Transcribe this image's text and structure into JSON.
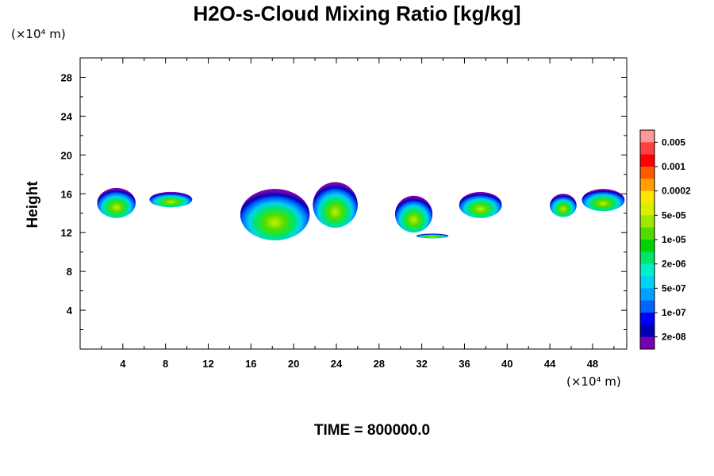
{
  "chart_data": {
    "type": "heatmap",
    "title": "H2O-s-Cloud Mixing Ratio [kg/kg]",
    "ylabel": "Height",
    "xlabel": "",
    "x_unit": "(×10⁴ m)",
    "y_unit": "(×10⁴ m)",
    "footer": "TIME = 800000.0",
    "xlim": [
      0,
      51.2
    ],
    "ylim": [
      0,
      30
    ],
    "x_ticks": [
      4,
      8,
      12,
      16,
      20,
      24,
      28,
      32,
      36,
      40,
      44,
      48
    ],
    "y_ticks": [
      4,
      8,
      12,
      16,
      20,
      24,
      28
    ],
    "colorbar": {
      "labels": [
        "0.005",
        "0.001",
        "0.0002",
        "5e-05",
        "1e-05",
        "2e-06",
        "5e-07",
        "1e-07",
        "2e-08"
      ],
      "colors_top_to_bottom": [
        "#ff9999",
        "#ff4040",
        "#ff0000",
        "#ff5a00",
        "#ffa000",
        "#ffe600",
        "#d7f000",
        "#a0e600",
        "#50dc00",
        "#00d200",
        "#00e664",
        "#00f0c8",
        "#00d2f0",
        "#00a0ff",
        "#0064ff",
        "#0000ff",
        "#0000b4",
        "#7800b4"
      ]
    },
    "cloud_clusters": [
      {
        "x": [
          1.6,
          5.2
        ],
        "y": [
          13.5,
          16.6
        ]
      },
      {
        "x": [
          6.5,
          10.5
        ],
        "y": [
          14.6,
          16.2
        ]
      },
      {
        "x": [
          15.0,
          21.5
        ],
        "y": [
          11.2,
          16.5
        ]
      },
      {
        "x": [
          21.8,
          26.0
        ],
        "y": [
          12.5,
          17.2
        ]
      },
      {
        "x": [
          29.5,
          33.0
        ],
        "y": [
          12.0,
          15.8
        ]
      },
      {
        "x": [
          31.5,
          34.5
        ],
        "y": [
          11.4,
          11.9
        ]
      },
      {
        "x": [
          35.5,
          39.5
        ],
        "y": [
          13.5,
          16.2
        ]
      },
      {
        "x": [
          44.0,
          46.5
        ],
        "y": [
          13.6,
          16.0
        ]
      },
      {
        "x": [
          47.0,
          51.0
        ],
        "y": [
          14.2,
          16.5
        ]
      }
    ]
  }
}
